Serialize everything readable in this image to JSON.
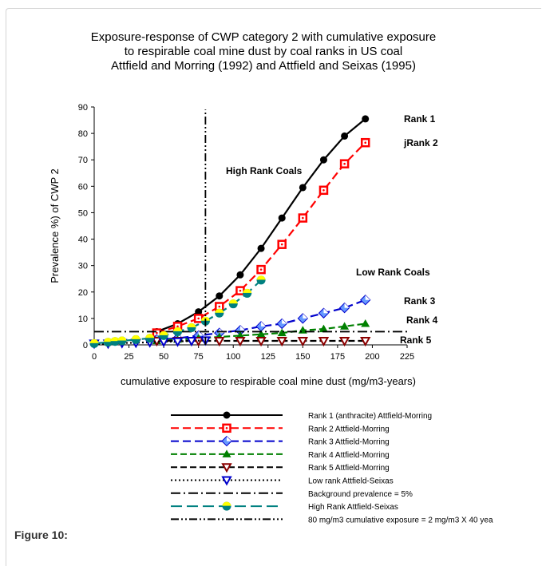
{
  "chart_data": {
    "type": "line",
    "title_lines": [
      "Exposure-response of CWP category 2 with cumulative exposure",
      "to respirable coal mine dust by coal ranks in US coal",
      "Attfield and Morring (1992) and Attfield and Seixas (1995)"
    ],
    "xlabel": "cumulative exposure to respirable coal mine dust (mg/m3-years)",
    "ylabel": "Prevalence %) of CWP 2",
    "xlim": [
      0,
      225
    ],
    "ylim": [
      0,
      90
    ],
    "x_ticks": [
      "0",
      "25",
      "50",
      "75",
      "100",
      "125",
      "150",
      "175",
      "200",
      "225"
    ],
    "y_ticks": [
      "0",
      "10",
      "20",
      "30",
      "40",
      "50",
      "60",
      "70",
      "80",
      "90"
    ],
    "grid": false,
    "legend_position": "below",
    "annotations": {
      "high_rank": "High Rank Coals",
      "low_rank": "Low Rank Coals",
      "rank1": "Rank 1",
      "rank2": "jRank 2",
      "rank3": "Rank 3",
      "rank4": "Rank 4",
      "rank5": "Rank 5"
    },
    "series": [
      {
        "name": "Rank 1 (anthracite) Attfield-Morring",
        "color": "#000000",
        "dash": "",
        "marker": "circle",
        "x": [
          45,
          60,
          75,
          90,
          105,
          120,
          135,
          150,
          165,
          180,
          195
        ],
        "y": [
          5,
          8,
          12.5,
          18.5,
          26.5,
          36.5,
          48,
          59.5,
          70,
          79,
          85.5
        ]
      },
      {
        "name": "Rank 2 Attfield-Morring",
        "color": "#ff0000",
        "dash": "10,5",
        "marker": "square",
        "x": [
          45,
          60,
          75,
          90,
          105,
          120,
          135,
          150,
          165,
          180,
          195
        ],
        "y": [
          4.5,
          7,
          10,
          14.5,
          20.5,
          28.5,
          38,
          48,
          58.5,
          68.5,
          76.5
        ]
      },
      {
        "name": "Rank 3 Attfield-Morring",
        "color": "#0000cc",
        "dash": "10,5",
        "marker": "diamond",
        "x": [
          45,
          60,
          75,
          90,
          105,
          120,
          135,
          150,
          165,
          180,
          195
        ],
        "y": [
          2,
          2.5,
          3.5,
          4.5,
          5.5,
          7,
          8,
          10,
          12,
          14,
          17
        ]
      },
      {
        "name": "Rank 4 Attfield-Morring",
        "color": "#008000",
        "dash": "8,4",
        "marker": "triangle",
        "x": [
          45,
          60,
          75,
          90,
          105,
          120,
          135,
          150,
          165,
          180,
          195
        ],
        "y": [
          1.5,
          2,
          2.5,
          3,
          3.5,
          4,
          4.5,
          5.5,
          6,
          7,
          8
        ]
      },
      {
        "name": "Rank 5 Attfield-Morring",
        "color": "#000000",
        "dash": "8,4",
        "marker": "triangle-down",
        "x": [
          45,
          60,
          75,
          90,
          105,
          120,
          135,
          150,
          165,
          180,
          195
        ],
        "y": [
          1.5,
          1.5,
          1.5,
          1.5,
          1.5,
          1.5,
          1.5,
          1.5,
          1.5,
          1.5,
          1.5
        ]
      },
      {
        "name": "Low rank  Attfield-Seixas",
        "color": "#000000",
        "dash": "2,3",
        "marker": "triangle-down-blue",
        "x": [
          0,
          10,
          20,
          30,
          40,
          50,
          60,
          70,
          80
        ],
        "y": [
          0.5,
          0.5,
          0.7,
          0.8,
          1,
          1.2,
          1.3,
          1.5,
          1.7
        ]
      },
      {
        "name": "Background prevalence = 5%",
        "color": "#000000",
        "dash": "12,4,2,4",
        "marker": "none",
        "x": [
          0,
          225
        ],
        "y": [
          5,
          5
        ]
      },
      {
        "name": "High Rank  Attfield-Seixas",
        "color": "#008080",
        "dash": "14,6",
        "marker": "circle-bicolor",
        "x": [
          0,
          10,
          15,
          20,
          30,
          40,
          50,
          60,
          70,
          80,
          90,
          100,
          110,
          120
        ],
        "y": [
          0.5,
          1,
          1.3,
          1.5,
          2,
          2.5,
          3.5,
          5,
          6.5,
          9,
          12,
          15.5,
          19.5,
          24.5
        ]
      },
      {
        "name": "80 mg/m3 cumulative exposure = 2 mg/m3 X 40 yea",
        "color": "#000000",
        "dash": "10,3,2,3,2,3",
        "marker": "none",
        "x": [
          80,
          80
        ],
        "y": [
          0,
          89
        ]
      }
    ]
  },
  "figure_caption": "Figure 10:"
}
